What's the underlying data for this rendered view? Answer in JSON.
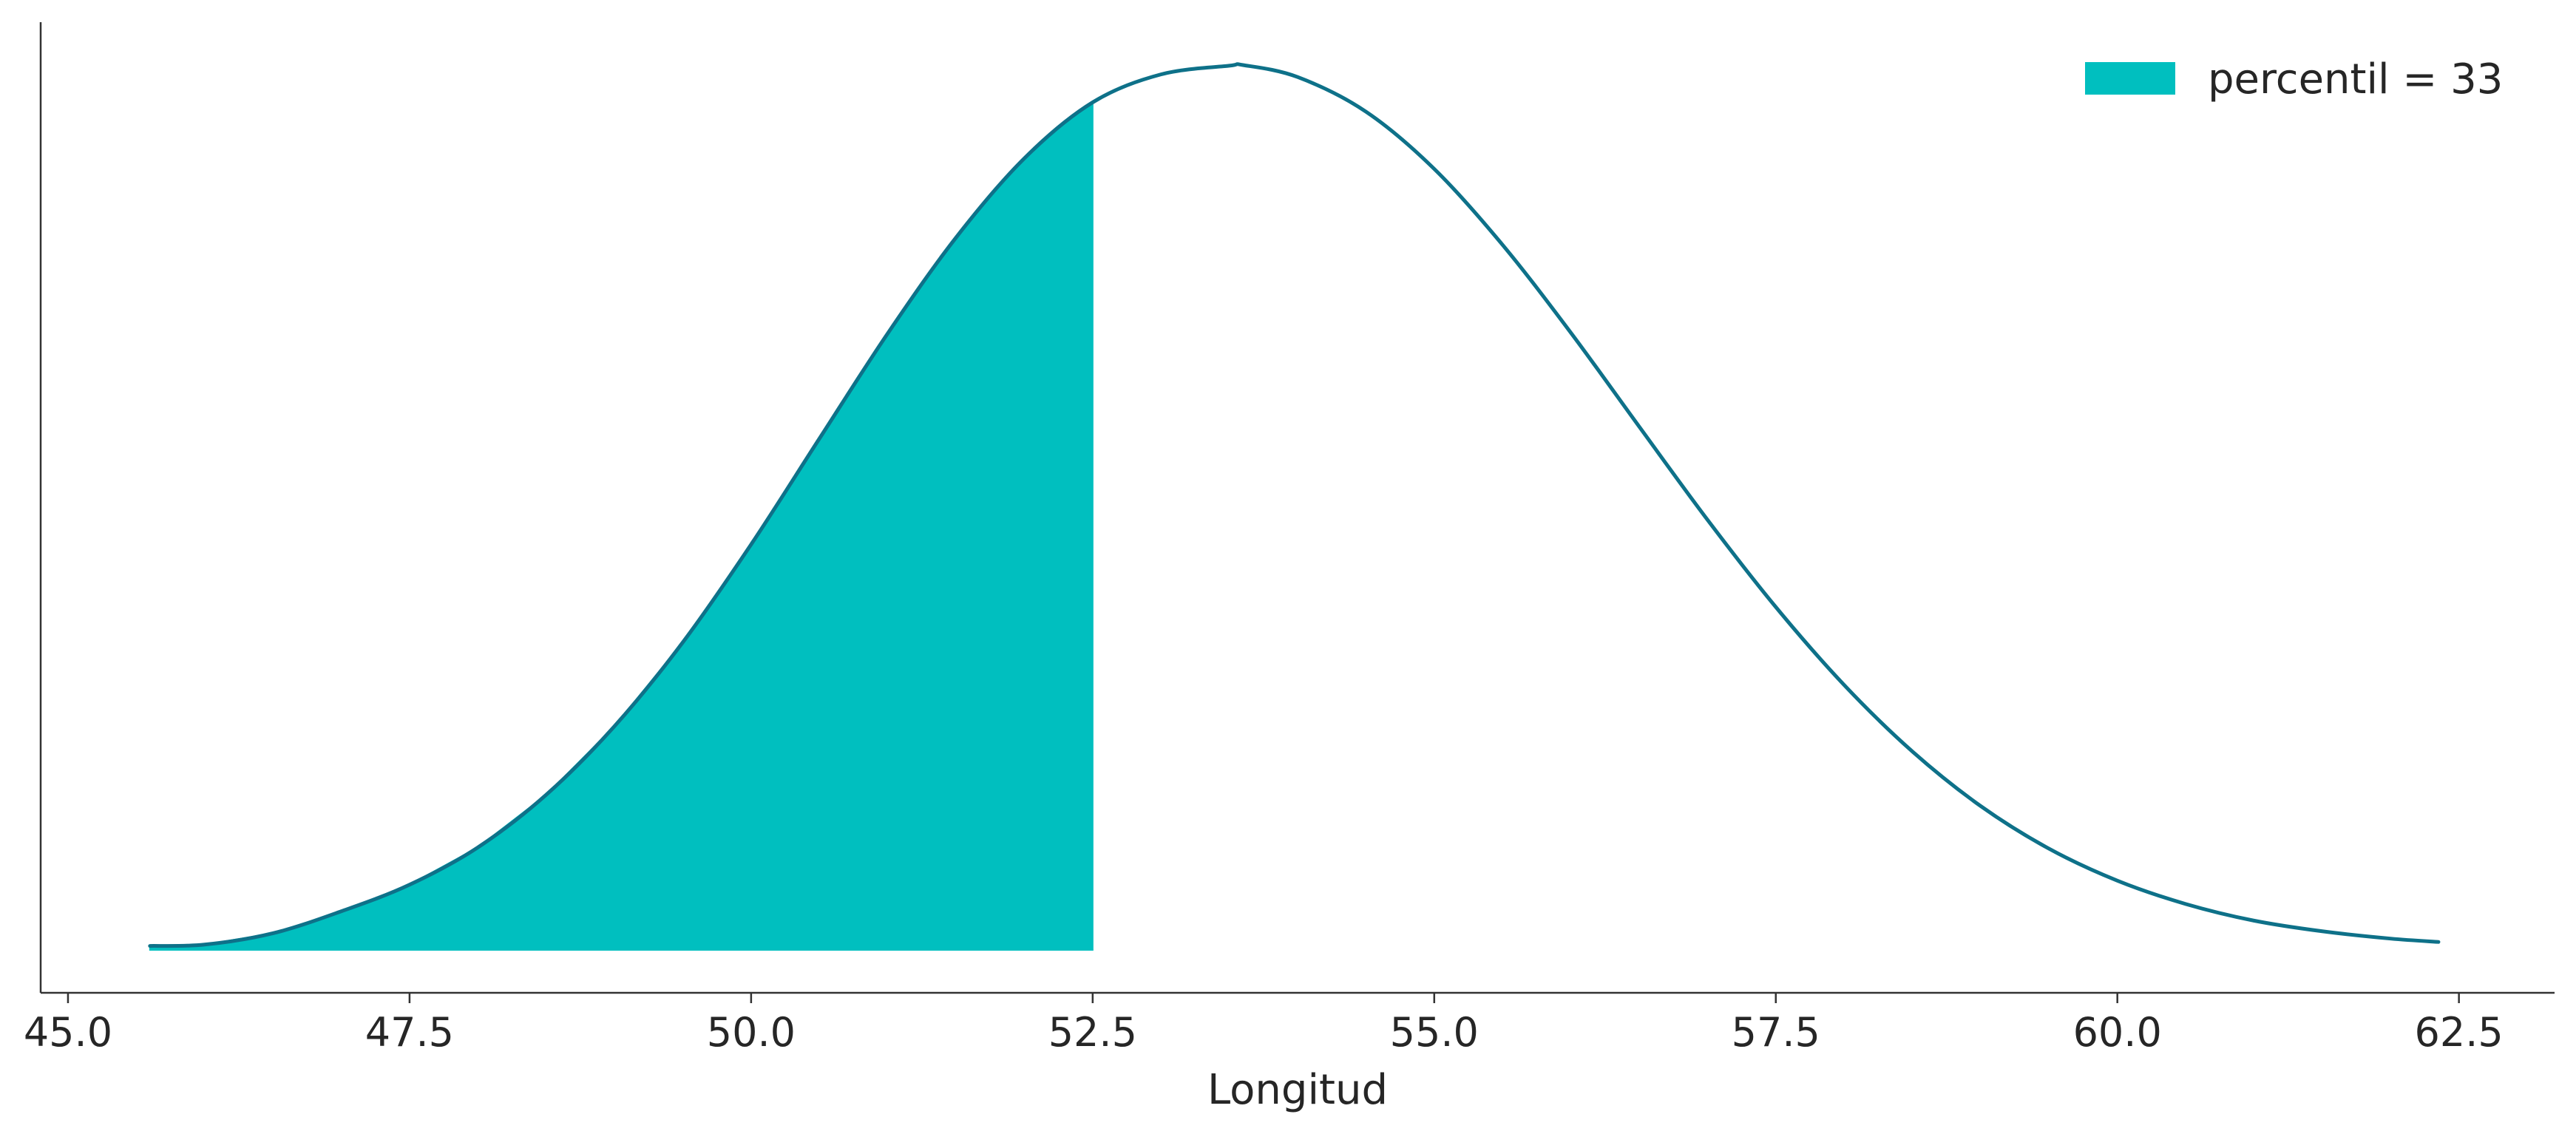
{
  "chart_data": {
    "type": "area",
    "xlabel": "Longitud",
    "ylabel": "",
    "xlim": [
      44.8,
      63.2
    ],
    "xticks": [
      45.0,
      47.5,
      50.0,
      52.5,
      55.0,
      57.5,
      60.0,
      62.5
    ],
    "xtick_labels": [
      "45.0",
      "47.5",
      "50.0",
      "52.5",
      "55.0",
      "57.5",
      "60.0",
      "62.5"
    ],
    "yticks_visible": false,
    "grid": false,
    "legend_position": "top-right",
    "series": [
      {
        "type": "line",
        "x": [
          45.6,
          46.0,
          46.5,
          47.0,
          47.5,
          48.0,
          48.5,
          49.0,
          49.5,
          50.0,
          50.5,
          51.0,
          51.5,
          52.0,
          52.5,
          53.0,
          53.5,
          53.6,
          54.0,
          54.5,
          55.0,
          55.5,
          56.0,
          56.5,
          57.0,
          57.5,
          58.0,
          58.5,
          59.0,
          59.5,
          60.0,
          60.5,
          61.0,
          61.5,
          62.0,
          62.35
        ],
        "y": [
          0.0006,
          0.0008,
          0.0025,
          0.0058,
          0.0098,
          0.0154,
          0.0233,
          0.0336,
          0.0462,
          0.0609,
          0.0768,
          0.0926,
          0.107,
          0.1189,
          0.1273,
          0.1315,
          0.1328,
          0.1329,
          0.1311,
          0.1259,
          0.1173,
          0.1059,
          0.0927,
          0.0786,
          0.0646,
          0.0515,
          0.0398,
          0.0298,
          0.0216,
          0.0152,
          0.0104,
          0.0069,
          0.0044,
          0.0028,
          0.0017,
          0.0012
        ],
        "color": "#0e7189"
      },
      {
        "type": "area",
        "name": "percentil = 33",
        "x_start": 45.6,
        "x_end": 52.5,
        "color": "#00bfbf"
      }
    ]
  }
}
